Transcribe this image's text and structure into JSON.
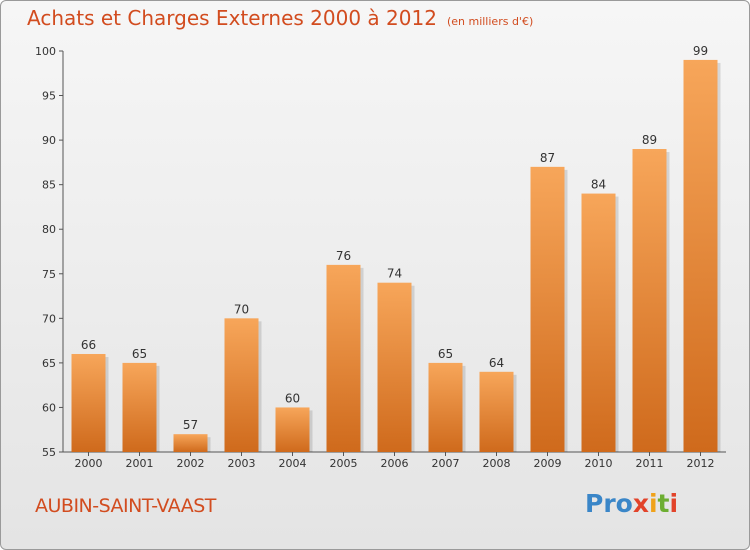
{
  "header": {
    "title": "Achats et Charges Externes 2000 à 2012",
    "subtitle": "(en milliers d'€)"
  },
  "footer": {
    "commune": "AUBIN-SAINT-VAAST",
    "logo": {
      "p1": "Pro",
      "p2": "x",
      "p3": "i",
      "p4": "t",
      "p5": "i"
    }
  },
  "colors": {
    "bar_light": "#f7a65a",
    "bar_dark": "#cf6a1c",
    "title": "#d24c1f"
  },
  "chart_data": {
    "type": "bar",
    "title": "Achats et Charges Externes 2000 à 2012",
    "subtitle": "(en milliers d'€)",
    "categories": [
      "2000",
      "2001",
      "2002",
      "2003",
      "2004",
      "2005",
      "2006",
      "2007",
      "2008",
      "2009",
      "2010",
      "2011",
      "2012"
    ],
    "values": [
      66,
      65,
      57,
      70,
      60,
      76,
      74,
      65,
      64,
      87,
      84,
      89,
      99
    ],
    "ylim": [
      55,
      100
    ],
    "yticks": [
      55,
      60,
      65,
      70,
      75,
      80,
      85,
      90,
      95,
      100
    ],
    "grid": false,
    "data_labels": true
  }
}
